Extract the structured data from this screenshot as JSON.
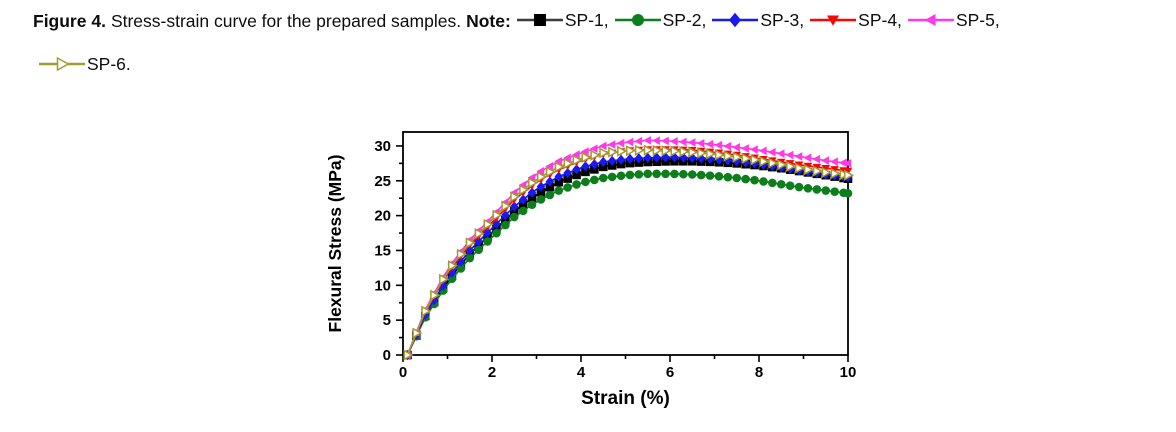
{
  "caption": {
    "figure_label": "Figure 4.",
    "body_text": "Stress-strain curve for the prepared samples.",
    "note_label": "Note:",
    "legend": [
      {
        "label": "SP-1,",
        "marker": "square",
        "marker_color": "#000000",
        "line_color": "#3c3c3c",
        "open": false,
        "row": 1
      },
      {
        "label": "SP-2,",
        "marker": "circle",
        "marker_color": "#0c7f1c",
        "line_color": "#0c7f1c",
        "open": false,
        "row": 1
      },
      {
        "label": "SP-3,",
        "marker": "diamond",
        "marker_color": "#1a1af0",
        "line_color": "#1a1af0",
        "open": false,
        "row": 1
      },
      {
        "label": "SP-4,",
        "marker": "triangle-down",
        "marker_color": "#fa0505",
        "line_color": "#fa0505",
        "open": false,
        "row": 1
      },
      {
        "label": "SP-5,",
        "marker": "triangle-left",
        "marker_color": "#ff38e8",
        "line_color": "#ff38e8",
        "open": false,
        "row": 1
      },
      {
        "label": "SP-6.",
        "marker": "triangle-right",
        "marker_color": "#a49b2f",
        "line_color": "#a49b2f",
        "open": true,
        "row": 2
      }
    ]
  },
  "chart_data": {
    "type": "line",
    "title": "",
    "xlabel": "Strain (%)",
    "ylabel": "Flexural Stress (MPa)",
    "xlim": [
      0,
      10
    ],
    "ylim": [
      0,
      32
    ],
    "xticks": [
      0,
      2,
      4,
      6,
      8,
      10
    ],
    "yticks": [
      0,
      5,
      10,
      15,
      20,
      25,
      30
    ],
    "x_minor_ticks": [
      1,
      3,
      5,
      7,
      9
    ],
    "y_minor_ticks": [
      2.5,
      7.5,
      12.5,
      17.5,
      22.5,
      27.5
    ],
    "grid": false,
    "legend_position": "in-caption",
    "frame_color": "#000000",
    "marker_step": 0.2,
    "x": [
      0.1,
      0.5,
      1,
      1.5,
      2,
      2.5,
      3,
      3.5,
      4,
      4.5,
      5,
      5.5,
      6,
      6.5,
      7,
      7.5,
      8,
      8.5,
      9,
      9.5,
      10
    ],
    "series": [
      {
        "name": "SP-1",
        "color": "#000000",
        "marker": "square",
        "open": false,
        "values": [
          0,
          5.6,
          10.6,
          14.5,
          17.6,
          20.6,
          23.0,
          24.8,
          26.1,
          27.0,
          27.5,
          27.7,
          27.8,
          27.8,
          27.7,
          27.5,
          27.2,
          26.8,
          26.3,
          25.8,
          25.3
        ]
      },
      {
        "name": "SP-2",
        "color": "#0c7f1c",
        "marker": "circle",
        "open": false,
        "values": [
          0,
          5.4,
          10.2,
          13.9,
          16.9,
          19.8,
          22.0,
          23.6,
          24.7,
          25.4,
          25.8,
          26.0,
          26.0,
          25.9,
          25.7,
          25.4,
          25.0,
          24.5,
          24.0,
          23.6,
          23.2
        ]
      },
      {
        "name": "SP-3",
        "color": "#1a1af0",
        "marker": "diamond",
        "open": false,
        "values": [
          0,
          5.8,
          11.0,
          15.0,
          18.2,
          21.3,
          23.8,
          25.6,
          26.9,
          27.7,
          28.1,
          28.3,
          28.4,
          28.3,
          28.1,
          27.8,
          27.4,
          26.9,
          26.4,
          25.9,
          25.5
        ]
      },
      {
        "name": "SP-4",
        "color": "#fa0505",
        "marker": "triangle-down",
        "open": false,
        "values": [
          0,
          6.2,
          11.8,
          15.8,
          19.0,
          22.3,
          24.8,
          26.6,
          27.9,
          28.8,
          29.3,
          29.5,
          29.5,
          29.4,
          29.1,
          28.7,
          28.2,
          27.7,
          27.2,
          26.8,
          26.4
        ]
      },
      {
        "name": "SP-5",
        "color": "#ff38e8",
        "marker": "triangle-left",
        "open": false,
        "values": [
          0,
          6.5,
          12.3,
          16.5,
          19.8,
          23.3,
          26.0,
          27.8,
          29.0,
          30.0,
          30.5,
          30.8,
          30.7,
          30.5,
          30.2,
          29.8,
          29.4,
          28.9,
          28.4,
          27.9,
          27.5
        ]
      },
      {
        "name": "SP-6",
        "color": "#a49b2f",
        "marker": "triangle-right",
        "open": true,
        "values": [
          0,
          6.3,
          12.0,
          16.1,
          19.4,
          22.7,
          25.2,
          27.0,
          28.2,
          29.0,
          29.3,
          29.4,
          29.3,
          29.1,
          28.8,
          28.4,
          27.9,
          27.3,
          26.7,
          26.2,
          25.8
        ]
      }
    ]
  }
}
